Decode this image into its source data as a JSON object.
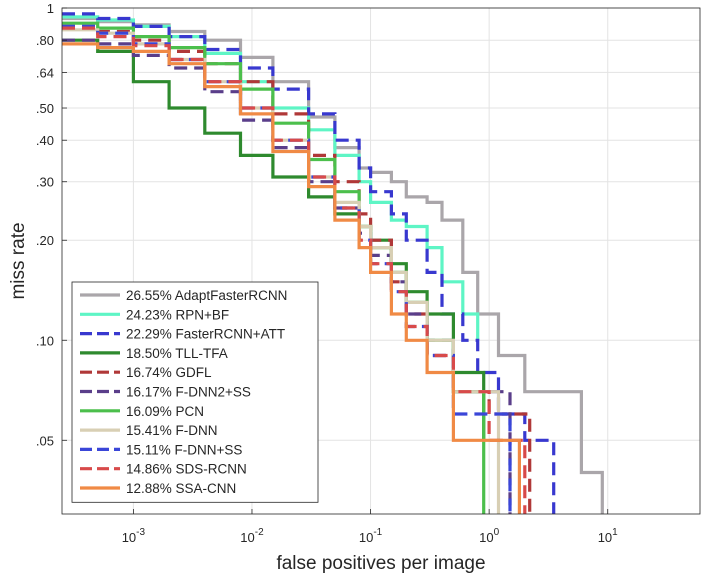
{
  "chart_data": {
    "type": "line",
    "title": "",
    "xlabel": "false positives per image",
    "ylabel": "miss rate",
    "xscale": "log",
    "yscale": "log",
    "xlim": [
      0.00025,
      60
    ],
    "ylim": [
      0.03,
      1.0
    ],
    "grid": true,
    "legend_location": "bottom-left",
    "x_ticks": [
      {
        "value": 0.001,
        "base": "10",
        "exp": "-3"
      },
      {
        "value": 0.01,
        "base": "10",
        "exp": "-2"
      },
      {
        "value": 0.1,
        "base": "10",
        "exp": "-1"
      },
      {
        "value": 1,
        "base": "10",
        "exp": "0"
      },
      {
        "value": 10,
        "base": "10",
        "exp": "1"
      }
    ],
    "y_ticks": [
      {
        "value": 1.0,
        "label": "1"
      },
      {
        "value": 0.8,
        "label": ".80"
      },
      {
        "value": 0.64,
        "label": ".64"
      },
      {
        "value": 0.5,
        "label": ".50"
      },
      {
        "value": 0.4,
        "label": ".40"
      },
      {
        "value": 0.3,
        "label": ".30"
      },
      {
        "value": 0.2,
        "label": ".20"
      },
      {
        "value": 0.1,
        "label": ".10"
      },
      {
        "value": 0.05,
        "label": ".05"
      }
    ],
    "series": [
      {
        "name": "26.55% AdaptFasterRCNN",
        "color": "#aaa6aa",
        "dash": "solid",
        "x": [
          0.00025,
          0.0005,
          0.001,
          0.002,
          0.004,
          0.008,
          0.015,
          0.03,
          0.05,
          0.08,
          0.1,
          0.15,
          0.2,
          0.3,
          0.4,
          0.6,
          0.8,
          1.2,
          2,
          3,
          6,
          9
        ],
        "y": [
          0.93,
          0.91,
          0.89,
          0.85,
          0.8,
          0.71,
          0.6,
          0.47,
          0.38,
          0.33,
          0.32,
          0.3,
          0.27,
          0.26,
          0.23,
          0.16,
          0.12,
          0.09,
          0.07,
          0.07,
          0.04,
          0.03
        ]
      },
      {
        "name": "24.23% RPN+BF",
        "color": "#5ef5c5",
        "dash": "solid",
        "x": [
          0.00025,
          0.0005,
          0.001,
          0.002,
          0.004,
          0.008,
          0.015,
          0.03,
          0.05,
          0.08,
          0.1,
          0.15,
          0.2,
          0.3,
          0.4,
          0.6,
          0.8
        ],
        "y": [
          0.94,
          0.92,
          0.88,
          0.82,
          0.73,
          0.6,
          0.5,
          0.43,
          0.36,
          0.3,
          0.26,
          0.23,
          0.22,
          0.19,
          0.15,
          0.12,
          0.1
        ]
      },
      {
        "name": "22.29% FasterRCNN+ATT",
        "color": "#3838cf",
        "dash": "dashed",
        "x": [
          0.00025,
          0.0005,
          0.001,
          0.002,
          0.004,
          0.008,
          0.015,
          0.03,
          0.05,
          0.08,
          0.1,
          0.15,
          0.2,
          0.3,
          0.4,
          0.6,
          0.8,
          1.2,
          2,
          3.5
        ],
        "y": [
          0.96,
          0.93,
          0.88,
          0.82,
          0.75,
          0.66,
          0.57,
          0.48,
          0.4,
          0.33,
          0.28,
          0.24,
          0.2,
          0.16,
          0.12,
          0.1,
          0.08,
          0.06,
          0.05,
          0.03
        ]
      },
      {
        "name": "18.50% TLL-TFA",
        "color": "#2e8a2e",
        "dash": "solid",
        "x": [
          0.00025,
          0.0005,
          0.001,
          0.002,
          0.004,
          0.008,
          0.015,
          0.03,
          0.05,
          0.08,
          0.1,
          0.15,
          0.2,
          0.3,
          0.5,
          0.9
        ],
        "y": [
          0.8,
          0.74,
          0.6,
          0.5,
          0.42,
          0.36,
          0.31,
          0.27,
          0.24,
          0.22,
          0.2,
          0.17,
          0.14,
          0.12,
          0.08,
          0.05
        ]
      },
      {
        "name": "16.74% GDFL",
        "color": "#b03838",
        "dash": "dashed",
        "x": [
          0.00025,
          0.0005,
          0.001,
          0.002,
          0.004,
          0.008,
          0.015,
          0.03,
          0.05,
          0.08,
          0.1,
          0.15,
          0.2,
          0.3,
          0.5,
          1,
          2.2
        ],
        "y": [
          0.88,
          0.85,
          0.8,
          0.74,
          0.68,
          0.6,
          0.48,
          0.36,
          0.3,
          0.24,
          0.2,
          0.15,
          0.12,
          0.09,
          0.07,
          0.06,
          0.03
        ]
      },
      {
        "name": "16.17% F-DNN2+SS",
        "color": "#5a3e8a",
        "dash": "dashed",
        "x": [
          0.00025,
          0.0005,
          0.001,
          0.002,
          0.004,
          0.008,
          0.015,
          0.03,
          0.05,
          0.08,
          0.1,
          0.15,
          0.2,
          0.3,
          0.5,
          1.5
        ],
        "y": [
          0.8,
          0.78,
          0.72,
          0.66,
          0.56,
          0.46,
          0.38,
          0.3,
          0.25,
          0.21,
          0.18,
          0.15,
          0.12,
          0.1,
          0.07,
          0.03
        ]
      },
      {
        "name": "16.09% PCN",
        "color": "#4cbf4c",
        "dash": "solid",
        "x": [
          0.00025,
          0.0005,
          0.001,
          0.002,
          0.004,
          0.008,
          0.015,
          0.03,
          0.05,
          0.08,
          0.1,
          0.15,
          0.2,
          0.3,
          0.5,
          0.9
        ],
        "y": [
          0.9,
          0.87,
          0.82,
          0.76,
          0.68,
          0.57,
          0.45,
          0.35,
          0.28,
          0.22,
          0.19,
          0.16,
          0.13,
          0.1,
          0.07,
          0.03
        ]
      },
      {
        "name": "15.41% F-DNN",
        "color": "#d8cfb4",
        "dash": "solid",
        "x": [
          0.00025,
          0.0005,
          0.001,
          0.002,
          0.004,
          0.008,
          0.015,
          0.03,
          0.05,
          0.08,
          0.1,
          0.15,
          0.2,
          0.3,
          0.5,
          1.2
        ],
        "y": [
          0.86,
          0.84,
          0.78,
          0.7,
          0.6,
          0.5,
          0.4,
          0.31,
          0.26,
          0.22,
          0.19,
          0.16,
          0.13,
          0.1,
          0.07,
          0.03
        ]
      },
      {
        "name": "15.11% F-DNN+SS",
        "color": "#3a46d8",
        "dash": "dashed",
        "x": [
          0.00025,
          0.0005,
          0.001,
          0.002,
          0.004,
          0.008,
          0.015,
          0.03,
          0.05,
          0.08,
          0.1,
          0.15,
          0.2,
          0.3,
          0.5,
          1.5
        ],
        "y": [
          0.88,
          0.84,
          0.78,
          0.7,
          0.6,
          0.5,
          0.4,
          0.31,
          0.25,
          0.2,
          0.17,
          0.14,
          0.11,
          0.09,
          0.06,
          0.03
        ]
      },
      {
        "name": "14.86% SDS-RCNN",
        "color": "#d84a4a",
        "dash": "dashed",
        "x": [
          0.00025,
          0.0005,
          0.001,
          0.002,
          0.004,
          0.008,
          0.015,
          0.03,
          0.05,
          0.08,
          0.1,
          0.15,
          0.2,
          0.3,
          0.5,
          1,
          2
        ],
        "y": [
          0.87,
          0.82,
          0.77,
          0.7,
          0.6,
          0.5,
          0.4,
          0.31,
          0.25,
          0.2,
          0.17,
          0.14,
          0.11,
          0.09,
          0.07,
          0.05,
          0.03
        ]
      },
      {
        "name": "12.88% SSA-CNN",
        "color": "#f08a45",
        "dash": "solid",
        "x": [
          0.00025,
          0.0005,
          0.001,
          0.002,
          0.004,
          0.008,
          0.015,
          0.03,
          0.05,
          0.08,
          0.1,
          0.15,
          0.2,
          0.3,
          0.5,
          1,
          1.8
        ],
        "y": [
          0.78,
          0.76,
          0.74,
          0.68,
          0.58,
          0.48,
          0.37,
          0.29,
          0.23,
          0.19,
          0.16,
          0.12,
          0.1,
          0.08,
          0.05,
          0.05,
          0.03
        ]
      }
    ]
  }
}
